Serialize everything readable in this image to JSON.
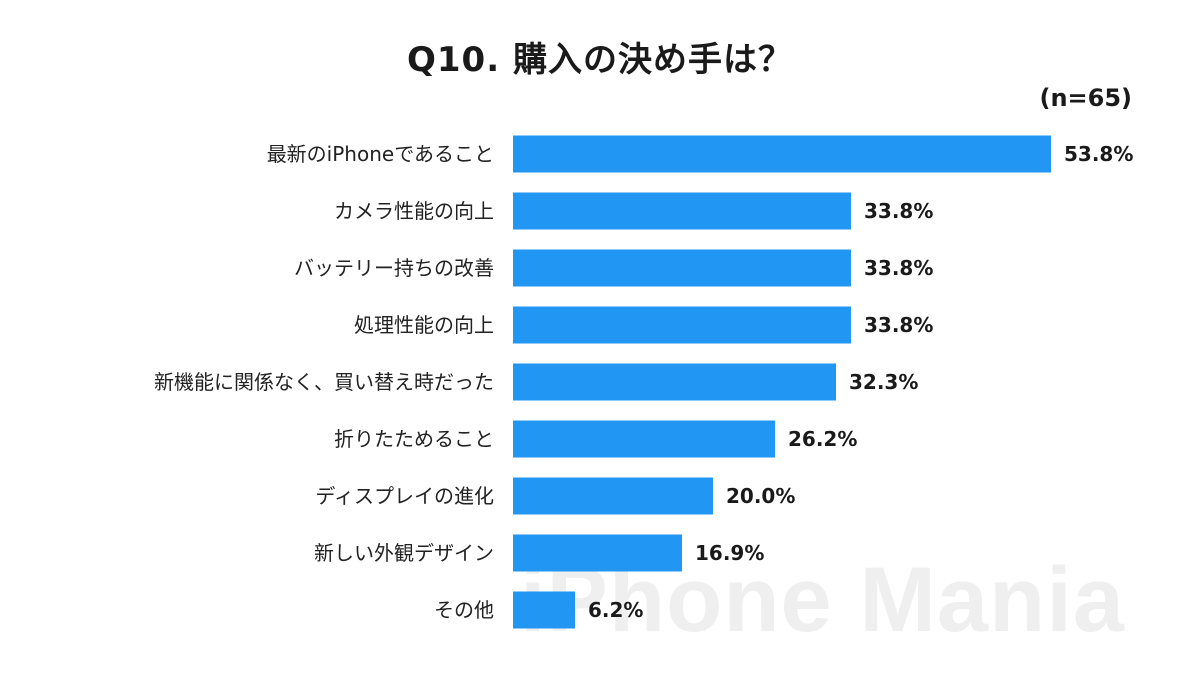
{
  "title": "Q10. 購入の決め手は？",
  "sample_size": "(n=65)",
  "watermark": "iPhone Mania",
  "colors": {
    "bar": "#2196f3",
    "text": "#1a1a1a"
  },
  "chart_data": {
    "type": "bar",
    "orientation": "horizontal",
    "title": "Q10. 購入の決め手は？",
    "xlabel": "",
    "ylabel": "",
    "xlim": [
      0,
      53.8
    ],
    "grid": false,
    "categories": [
      "最新のiPhoneであること",
      "カメラ性能の向上",
      "バッテリー持ちの改善",
      "処理性能の向上",
      "新機能に関係なく、買い替え時だった",
      "折りたためること",
      "ディスプレイの進化",
      "新しい外観デザイン",
      "その他"
    ],
    "values": [
      53.8,
      33.8,
      33.8,
      33.8,
      32.3,
      26.2,
      20.0,
      16.9,
      6.2
    ],
    "value_labels": [
      "53.8%",
      "33.8%",
      "33.8%",
      "33.8%",
      "32.3%",
      "26.2%",
      "20.0%",
      "16.9%",
      "6.2%"
    ],
    "unit": "%"
  }
}
